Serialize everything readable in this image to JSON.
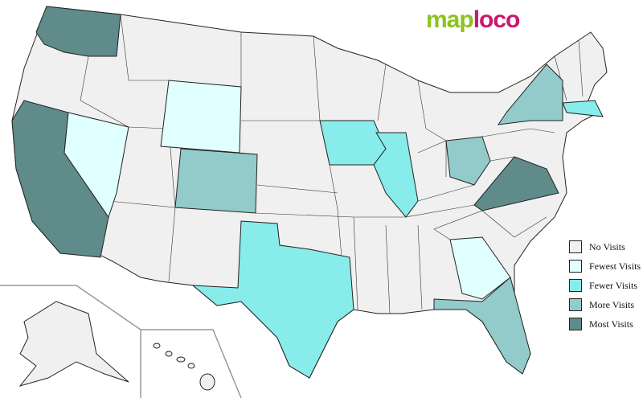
{
  "logo": {
    "part1": "map",
    "part2": "loco"
  },
  "legend": [
    {
      "label": "No Visits",
      "color": "#f0f0f0"
    },
    {
      "label": "Fewest Visits",
      "color": "#e0ffff"
    },
    {
      "label": "Fewer Visits",
      "color": "#88eceb"
    },
    {
      "label": "More Visits",
      "color": "#92cbca"
    },
    {
      "label": "Most Visits",
      "color": "#5f8b8a"
    }
  ],
  "states": {
    "Washington": "Most Visits",
    "California": "Most Visits",
    "Virginia": "Most Visits",
    "Nevada": "Fewest Visits",
    "Wyoming": "Fewest Visits",
    "Georgia": "Fewest Visits",
    "Texas": "Fewer Visits",
    "Iowa": "Fewer Visits",
    "Illinois": "Fewer Visits",
    "Massachusetts": "Fewer Visits",
    "Colorado": "More Visits",
    "Ohio": "More Visits",
    "New York": "More Visits",
    "Florida": "More Visits"
  }
}
